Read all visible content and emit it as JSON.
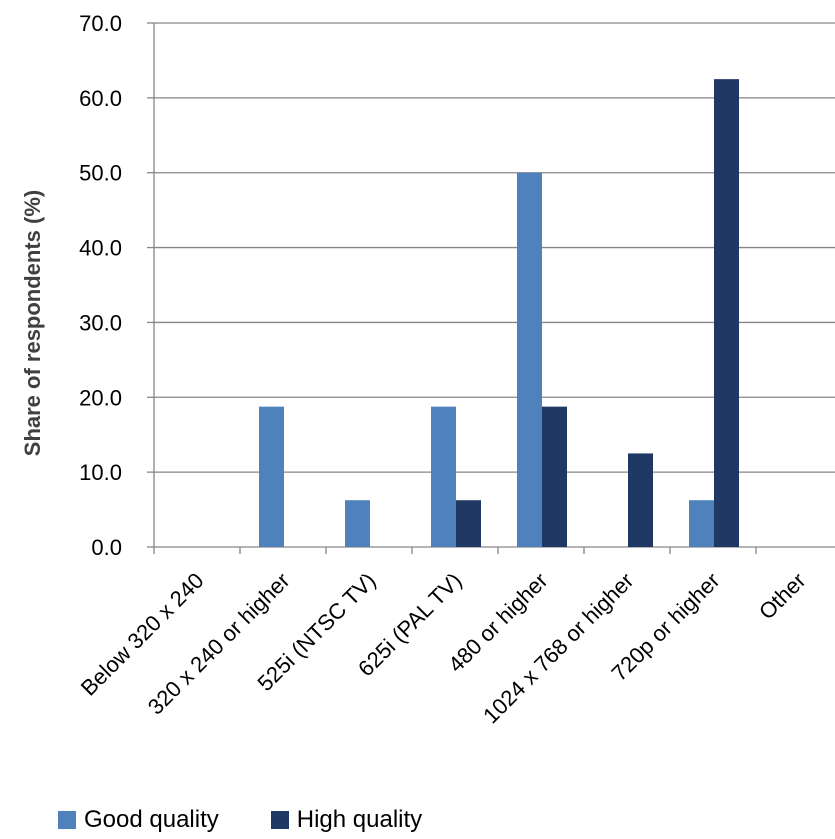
{
  "chart_data": {
    "type": "bar",
    "ylabel": "Share of respondents (%)",
    "ylim": [
      0,
      70
    ],
    "yticks": [
      "0.0",
      "10.0",
      "20.0",
      "30.0",
      "40.0",
      "50.0",
      "60.0",
      "70.0"
    ],
    "grid": true,
    "legend_position": "bottom",
    "categories": [
      "Below 320 x 240",
      "320 x 240 or higher",
      "525i (NTSC TV)",
      "625i (PAL TV)",
      "480 or higher",
      "1024 x 768 or higher",
      "720p or higher",
      "Other"
    ],
    "series": [
      {
        "name": "Good quality",
        "color": "#4f81bd",
        "values": [
          0,
          18.75,
          6.25,
          18.75,
          50.0,
          0,
          6.25,
          0
        ]
      },
      {
        "name": "High quality",
        "color": "#1f3864",
        "values": [
          0,
          0,
          0,
          6.25,
          18.75,
          12.5,
          62.5,
          0
        ]
      }
    ]
  }
}
